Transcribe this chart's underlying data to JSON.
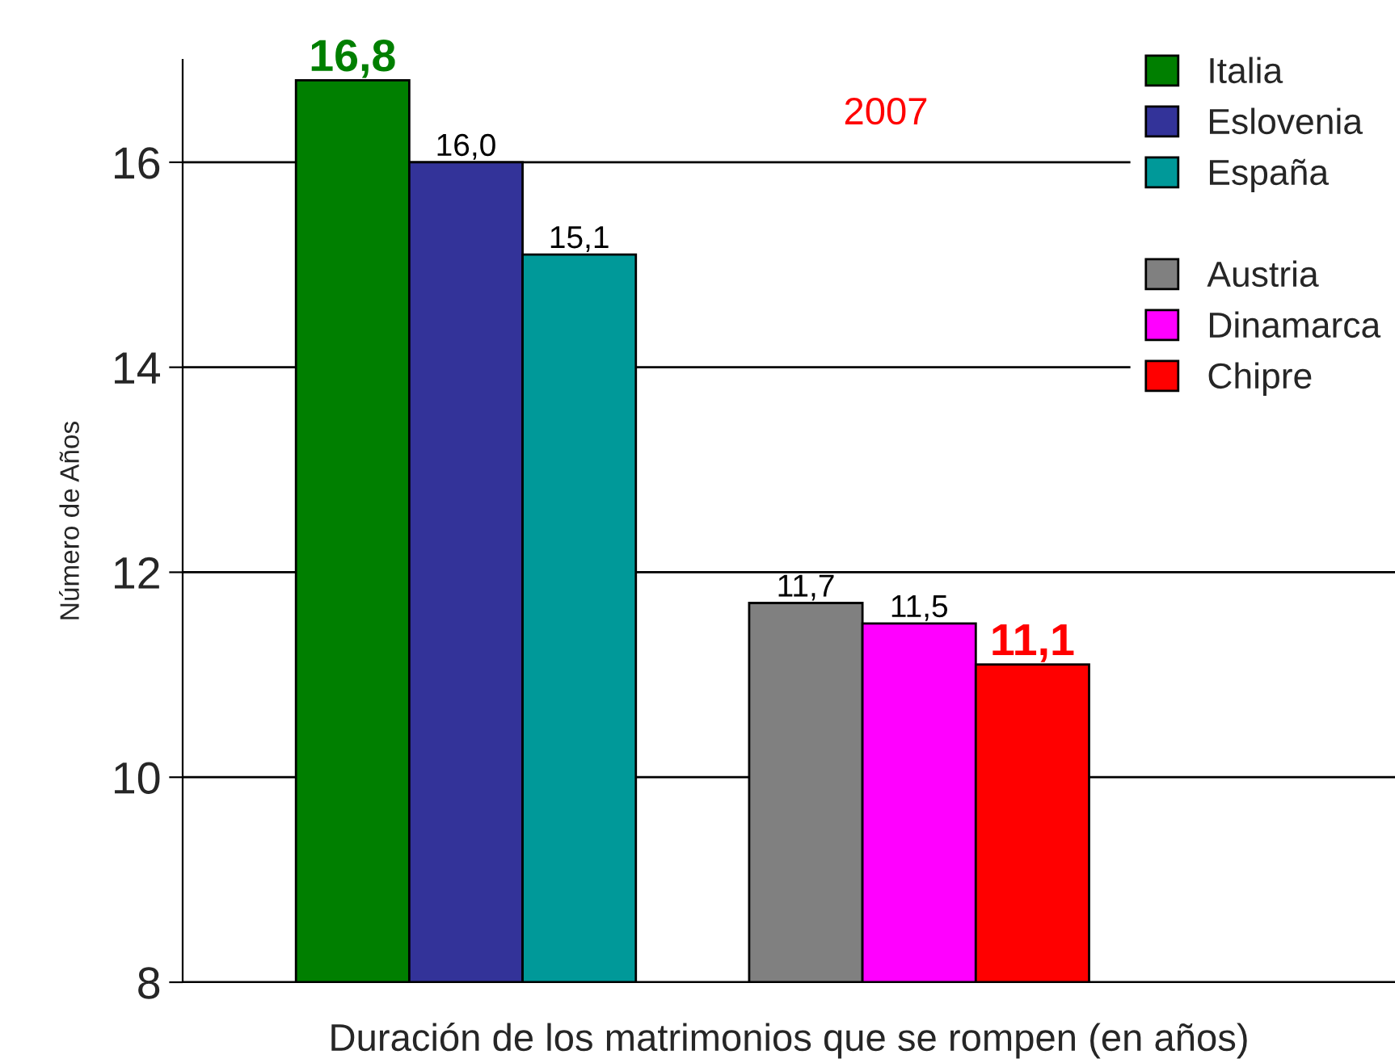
{
  "chart_data": {
    "type": "bar",
    "title": "2007",
    "xlabel": "Duración de los matrimonios que se rompen (en años)",
    "ylabel": "Número de Años",
    "categories": [
      null
    ],
    "series": [
      {
        "name": "Italia",
        "color": "#007f00",
        "values": [
          16.8
        ],
        "value_labels": [
          "16,8"
        ]
      },
      {
        "name": "Eslovenia",
        "color": "#333399",
        "values": [
          16.0
        ],
        "value_labels": [
          "16,0"
        ]
      },
      {
        "name": "España",
        "color": "#009999",
        "values": [
          15.1
        ],
        "value_labels": [
          "15,1"
        ]
      },
      {
        "name": "Austria",
        "color": "#808080",
        "values": [
          11.7
        ],
        "value_labels": [
          "11,7"
        ]
      },
      {
        "name": "Dinamarca",
        "color": "#ff00ff",
        "values": [
          11.5
        ],
        "value_labels": [
          "11,5"
        ]
      },
      {
        "name": "Chipre",
        "color": "#ff0000",
        "values": [
          11.1
        ],
        "value_labels": [
          "11,1"
        ]
      }
    ],
    "ylim": [
      8,
      17
    ],
    "yticks": [
      8,
      10,
      12,
      14,
      16
    ],
    "grid": "y",
    "legend": "top right"
  }
}
